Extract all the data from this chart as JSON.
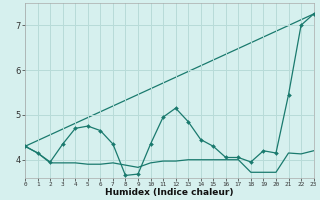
{
  "xlabel": "Humidex (Indice chaleur)",
  "background_color": "#d6f0ee",
  "grid_color": "#b8dbd8",
  "line_color": "#1a7a6e",
  "xlim": [
    0,
    23
  ],
  "ylim": [
    3.6,
    7.5
  ],
  "xticks": [
    0,
    1,
    2,
    3,
    4,
    5,
    6,
    7,
    8,
    9,
    10,
    11,
    12,
    13,
    14,
    15,
    16,
    17,
    18,
    19,
    20,
    21,
    22,
    23
  ],
  "yticks": [
    4,
    5,
    6,
    7
  ],
  "series_zigzag": {
    "x": [
      0,
      1,
      2,
      3,
      4,
      5,
      6,
      7,
      8,
      9,
      10,
      11,
      12,
      13,
      14,
      15,
      16,
      17,
      18,
      19,
      20,
      21,
      22,
      23
    ],
    "y": [
      4.3,
      4.15,
      3.95,
      4.35,
      4.7,
      4.75,
      4.65,
      4.35,
      3.65,
      3.68,
      4.35,
      4.95,
      5.15,
      4.85,
      4.45,
      4.3,
      4.05,
      4.05,
      3.95,
      4.2,
      4.15,
      5.45,
      7.0,
      7.25
    ]
  },
  "series_flat": {
    "x": [
      0,
      1,
      2,
      3,
      4,
      5,
      6,
      7,
      8,
      9,
      10,
      11,
      12,
      13,
      14,
      15,
      16,
      17,
      18,
      19,
      20,
      21,
      22,
      23
    ],
    "y": [
      4.3,
      4.15,
      3.93,
      3.93,
      3.93,
      3.9,
      3.9,
      3.93,
      3.88,
      3.83,
      3.93,
      3.97,
      3.97,
      4.0,
      4.0,
      4.0,
      4.0,
      4.0,
      3.72,
      3.72,
      3.72,
      4.15,
      4.13,
      4.2
    ]
  },
  "series_diagonal": {
    "x": [
      0,
      23
    ],
    "y": [
      4.3,
      7.25
    ]
  }
}
